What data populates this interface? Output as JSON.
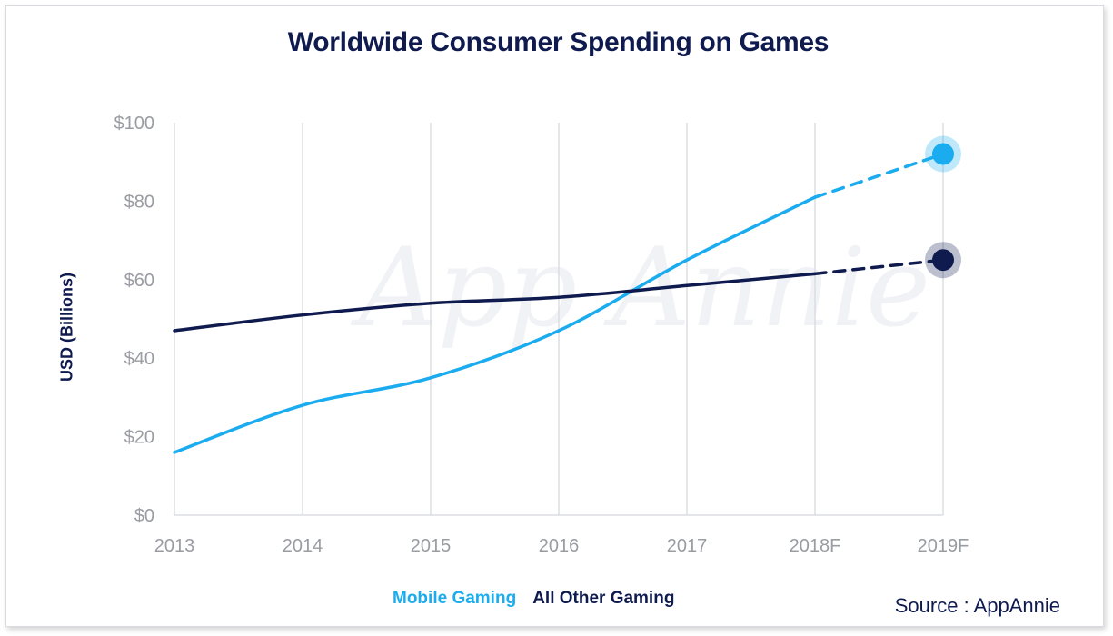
{
  "watermark": "App Annie",
  "chart_data": {
    "type": "line",
    "title": "Worldwide Consumer Spending on Games",
    "ylabel": "USD (Billions)",
    "xlabel": "",
    "categories": [
      "2013",
      "2014",
      "2015",
      "2016",
      "2017",
      "2018F",
      "2019F"
    ],
    "ylim": [
      0,
      100
    ],
    "yticks": [
      0,
      20,
      40,
      60,
      80,
      100
    ],
    "ytick_labels": [
      "$0",
      "$20",
      "$40",
      "$60",
      "$80",
      "$100"
    ],
    "grid": "vertical",
    "forecast_from_index": 5,
    "series": [
      {
        "name": "Mobile Gaming",
        "color": "#1aacef",
        "values": [
          16,
          28,
          35,
          47,
          65,
          81,
          92
        ]
      },
      {
        "name": "All Other Gaming",
        "color": "#0f1b4f",
        "values": [
          47,
          51,
          54,
          55.5,
          58.5,
          61.5,
          65
        ]
      }
    ],
    "legend": {
      "placement": "bottom-center"
    }
  },
  "source_text": "Source : AppAnnie"
}
